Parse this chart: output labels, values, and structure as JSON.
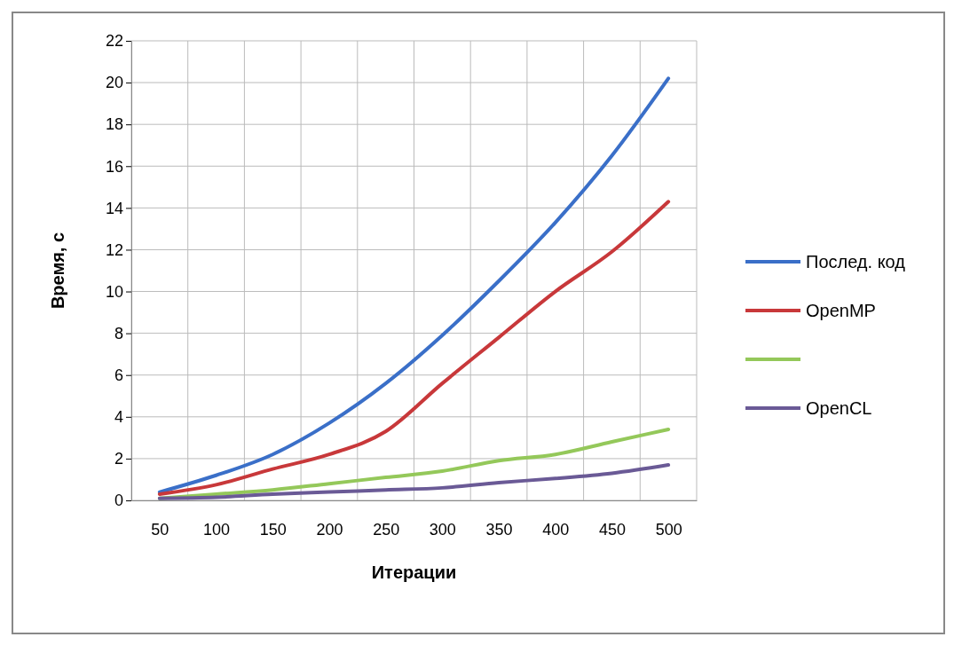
{
  "chart_data": {
    "type": "line",
    "xlabel": "Итерации",
    "ylabel": "Время, с",
    "categories": [
      "50",
      "100",
      "150",
      "200",
      "250",
      "300",
      "350",
      "400",
      "450",
      "500"
    ],
    "series": [
      {
        "name": "Послед. код",
        "color": "#3a6fc8",
        "values": [
          0.4,
          1.2,
          2.2,
          3.7,
          5.6,
          7.9,
          10.5,
          13.3,
          16.5,
          20.2
        ]
      },
      {
        "name": "OpenMP",
        "color": "#c8383a",
        "values": [
          0.3,
          0.75,
          1.5,
          2.2,
          3.3,
          5.6,
          7.8,
          10.0,
          11.9,
          14.3
        ]
      },
      {
        "color": "#94c85a",
        "values": [
          0.1,
          0.3,
          0.5,
          0.8,
          1.1,
          1.4,
          1.9,
          2.2,
          2.8,
          3.4
        ]
      },
      {
        "name": "OpenCL",
        "color": "#6a5a96",
        "values": [
          0.1,
          0.15,
          0.3,
          0.4,
          0.5,
          0.6,
          0.85,
          1.05,
          1.3,
          1.7
        ]
      }
    ],
    "ylim": [
      0,
      22
    ],
    "yticks": [
      0,
      2,
      4,
      6,
      8,
      10,
      12,
      14,
      16,
      18,
      20,
      22
    ],
    "grid": true,
    "legend": "right",
    "marker": "none",
    "line_style": "solid"
  }
}
